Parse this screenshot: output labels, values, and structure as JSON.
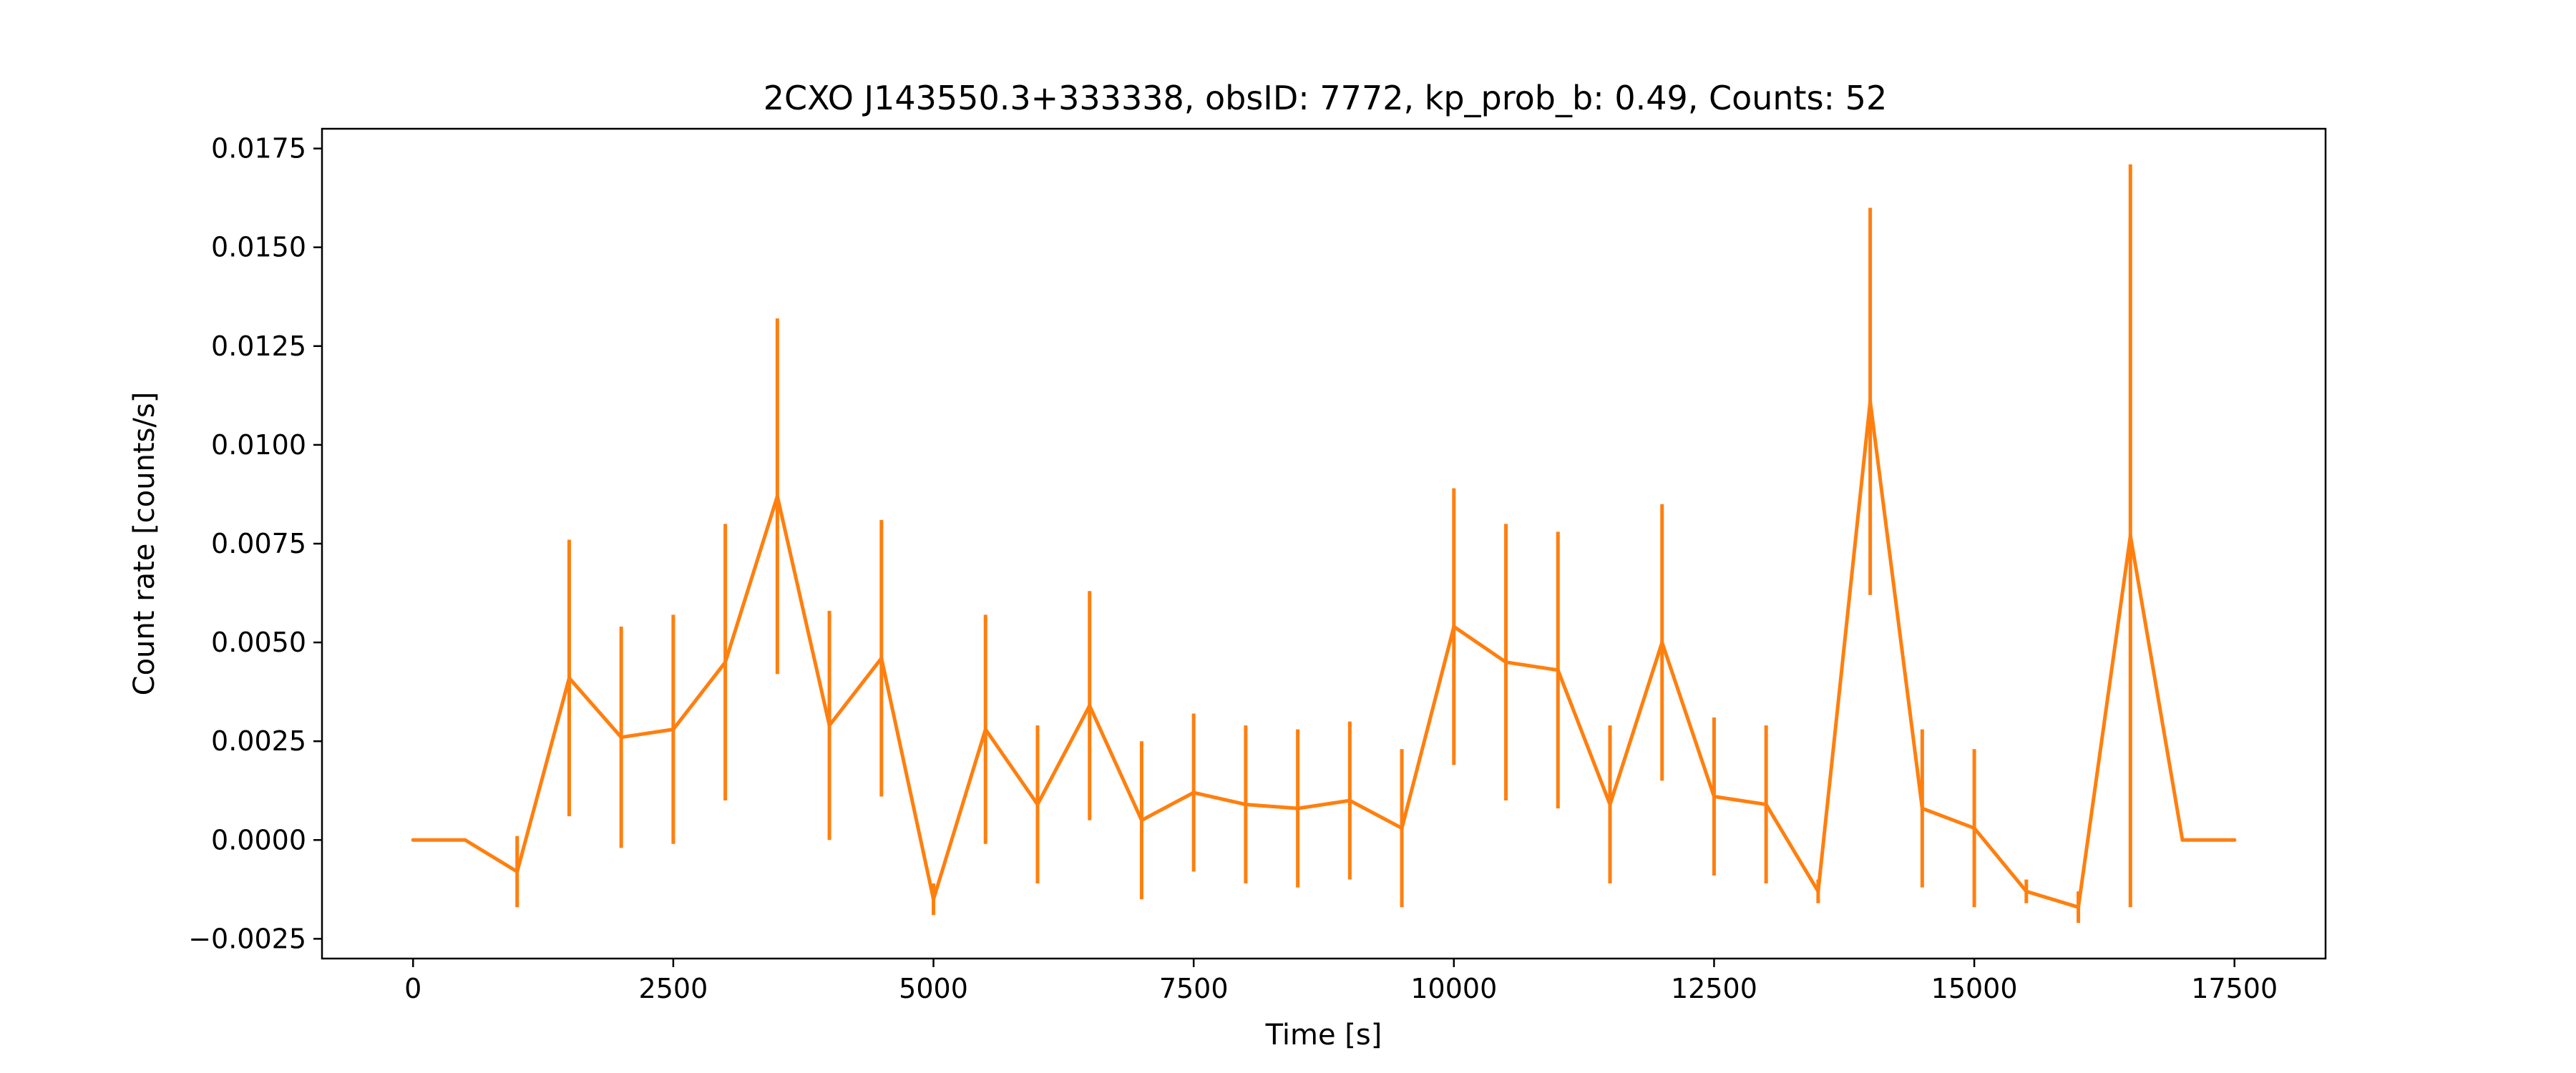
{
  "chart_data": {
    "type": "line",
    "title": "2CXO J143550.3+333338, obsID: 7772, kp_prob_b: 0.49, Counts: 52",
    "xlabel": "Time [s]",
    "ylabel": "Count rate [counts/s]",
    "xlim": [
      -875,
      18375
    ],
    "ylim": [
      -0.003,
      0.018
    ],
    "xticks": [
      0,
      2500,
      5000,
      7500,
      10000,
      12500,
      15000,
      17500
    ],
    "xtick_labels": [
      "0",
      "2500",
      "5000",
      "7500",
      "10000",
      "12500",
      "15000",
      "17500"
    ],
    "yticks": [
      -0.0025,
      0.0,
      0.0025,
      0.005,
      0.0075,
      0.01,
      0.0125,
      0.015,
      0.0175
    ],
    "ytick_labels": [
      "−0.0025",
      "0.0000",
      "0.0025",
      "0.0050",
      "0.0075",
      "0.0100",
      "0.0125",
      "0.0150",
      "0.0175"
    ],
    "grid": false,
    "color": "#ff7f0e",
    "series": [
      {
        "x": [
          0,
          500,
          1000,
          1500,
          2000,
          2500,
          3000,
          3500,
          4000,
          4500,
          5000,
          5500,
          6000,
          6500,
          7000,
          7500,
          8000,
          8500,
          9000,
          9500,
          10000,
          10500,
          11000,
          11500,
          12000,
          12500,
          13000,
          13500,
          14000,
          14500,
          15000,
          15500,
          16000,
          16500,
          17000,
          17500
        ],
        "y": [
          0.0,
          0.0,
          -0.0008,
          0.0041,
          0.0026,
          0.0028,
          0.0045,
          0.0087,
          0.0029,
          0.0046,
          -0.0015,
          0.0028,
          0.0009,
          0.0034,
          0.0005,
          0.0012,
          0.0009,
          0.0008,
          0.001,
          0.0003,
          0.0054,
          0.0045,
          0.0043,
          0.0009,
          0.005,
          0.0011,
          0.0009,
          -0.0013,
          0.0111,
          0.0008,
          0.0003,
          -0.0013,
          -0.0017,
          0.0077,
          0.0,
          0.0
        ],
        "err": [
          0.0,
          0.0,
          0.0009,
          0.0035,
          0.0028,
          0.0029,
          0.0035,
          0.0045,
          0.0029,
          0.0035,
          0.0004,
          0.0029,
          0.002,
          0.0029,
          0.002,
          0.002,
          0.002,
          0.002,
          0.002,
          0.002,
          0.0035,
          0.0035,
          0.0035,
          0.002,
          0.0035,
          0.002,
          0.002,
          0.0003,
          0.0049,
          0.002,
          0.002,
          0.0003,
          0.0004,
          0.0094,
          0.0,
          0.0
        ]
      }
    ]
  }
}
